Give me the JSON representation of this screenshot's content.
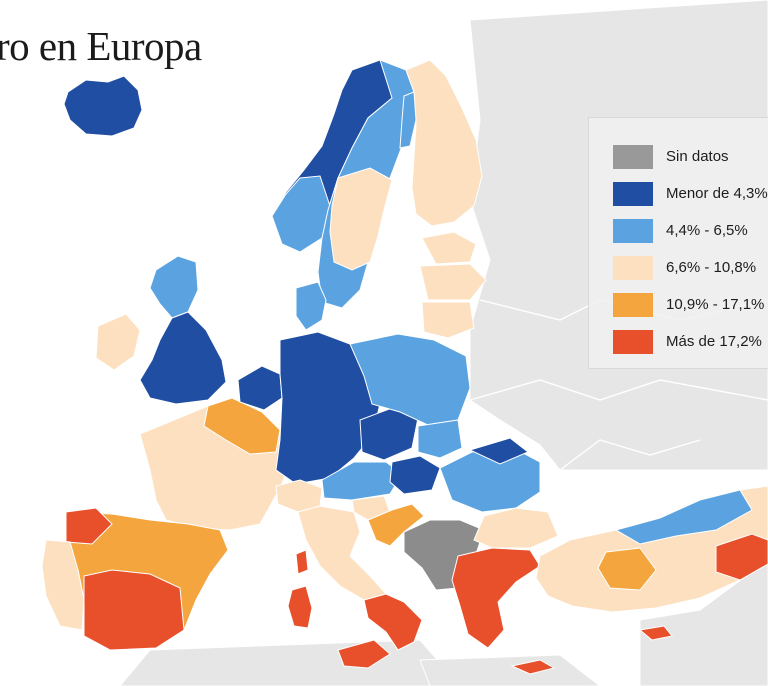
{
  "map": {
    "title": "ro en Europa",
    "colors": {
      "sea": "#ffffff",
      "non_eu": "#e6e6e6",
      "border": "#ffffff",
      "no_data": "#8c8c8c",
      "low": "#1f4ea3",
      "mid_low": "#5ba3e0",
      "mid": "#fce0c0",
      "mid_high": "#f4a53d",
      "high": "#e8502b"
    },
    "legend": [
      {
        "label": "Sin datos",
        "color": "#999999"
      },
      {
        "label": "Menor de 4,3%",
        "color": "#1f4ea3"
      },
      {
        "label": "4,4% - 6,5%",
        "color": "#5ba3e0"
      },
      {
        "label": "6,6% - 10,8%",
        "color": "#fce0c0"
      },
      {
        "label": "10,9% - 17,1%",
        "color": "#f4a53d"
      },
      {
        "label": "Más de 17,2%",
        "color": "#e8502b"
      }
    ],
    "regions": [
      {
        "name": "Iceland",
        "class": "low"
      },
      {
        "name": "Norway",
        "class": "low"
      },
      {
        "name": "Sweden",
        "class": "mid_low"
      },
      {
        "name": "Finland",
        "class": "mid"
      },
      {
        "name": "Estonia",
        "class": "mid"
      },
      {
        "name": "Latvia",
        "class": "mid"
      },
      {
        "name": "Lithuania",
        "class": "mid"
      },
      {
        "name": "Denmark",
        "class": "mid_low"
      },
      {
        "name": "Ireland",
        "class": "mid"
      },
      {
        "name": "United Kingdom",
        "class": "mid_low"
      },
      {
        "name": "England",
        "class": "low"
      },
      {
        "name": "Netherlands",
        "class": "low"
      },
      {
        "name": "Belgium",
        "class": "mid_high"
      },
      {
        "name": "France",
        "class": "mid"
      },
      {
        "name": "Germany",
        "class": "low"
      },
      {
        "name": "Poland",
        "class": "mid_low"
      },
      {
        "name": "Czech Republic",
        "class": "low"
      },
      {
        "name": "Austria",
        "class": "mid_low"
      },
      {
        "name": "Switzerland",
        "class": "mid"
      },
      {
        "name": "Hungary",
        "class": "mid_low"
      },
      {
        "name": "Romania",
        "class": "mid_low"
      },
      {
        "name": "Bulgaria",
        "class": "mid"
      },
      {
        "name": "Slovenia",
        "class": "mid"
      },
      {
        "name": "Croatia",
        "class": "mid_high"
      },
      {
        "name": "Western Balkans",
        "class": "no_data"
      },
      {
        "name": "Italy",
        "class": "mid"
      },
      {
        "name": "Southern Italy",
        "class": "high"
      },
      {
        "name": "Sicily",
        "class": "high"
      },
      {
        "name": "Sardinia",
        "class": "high"
      },
      {
        "name": "Corsica",
        "class": "high"
      },
      {
        "name": "Spain",
        "class": "mid_high"
      },
      {
        "name": "Portugal",
        "class": "mid"
      },
      {
        "name": "Greece",
        "class": "high"
      },
      {
        "name": "Cyprus",
        "class": "high"
      },
      {
        "name": "Turkey",
        "class": "mid"
      }
    ]
  }
}
